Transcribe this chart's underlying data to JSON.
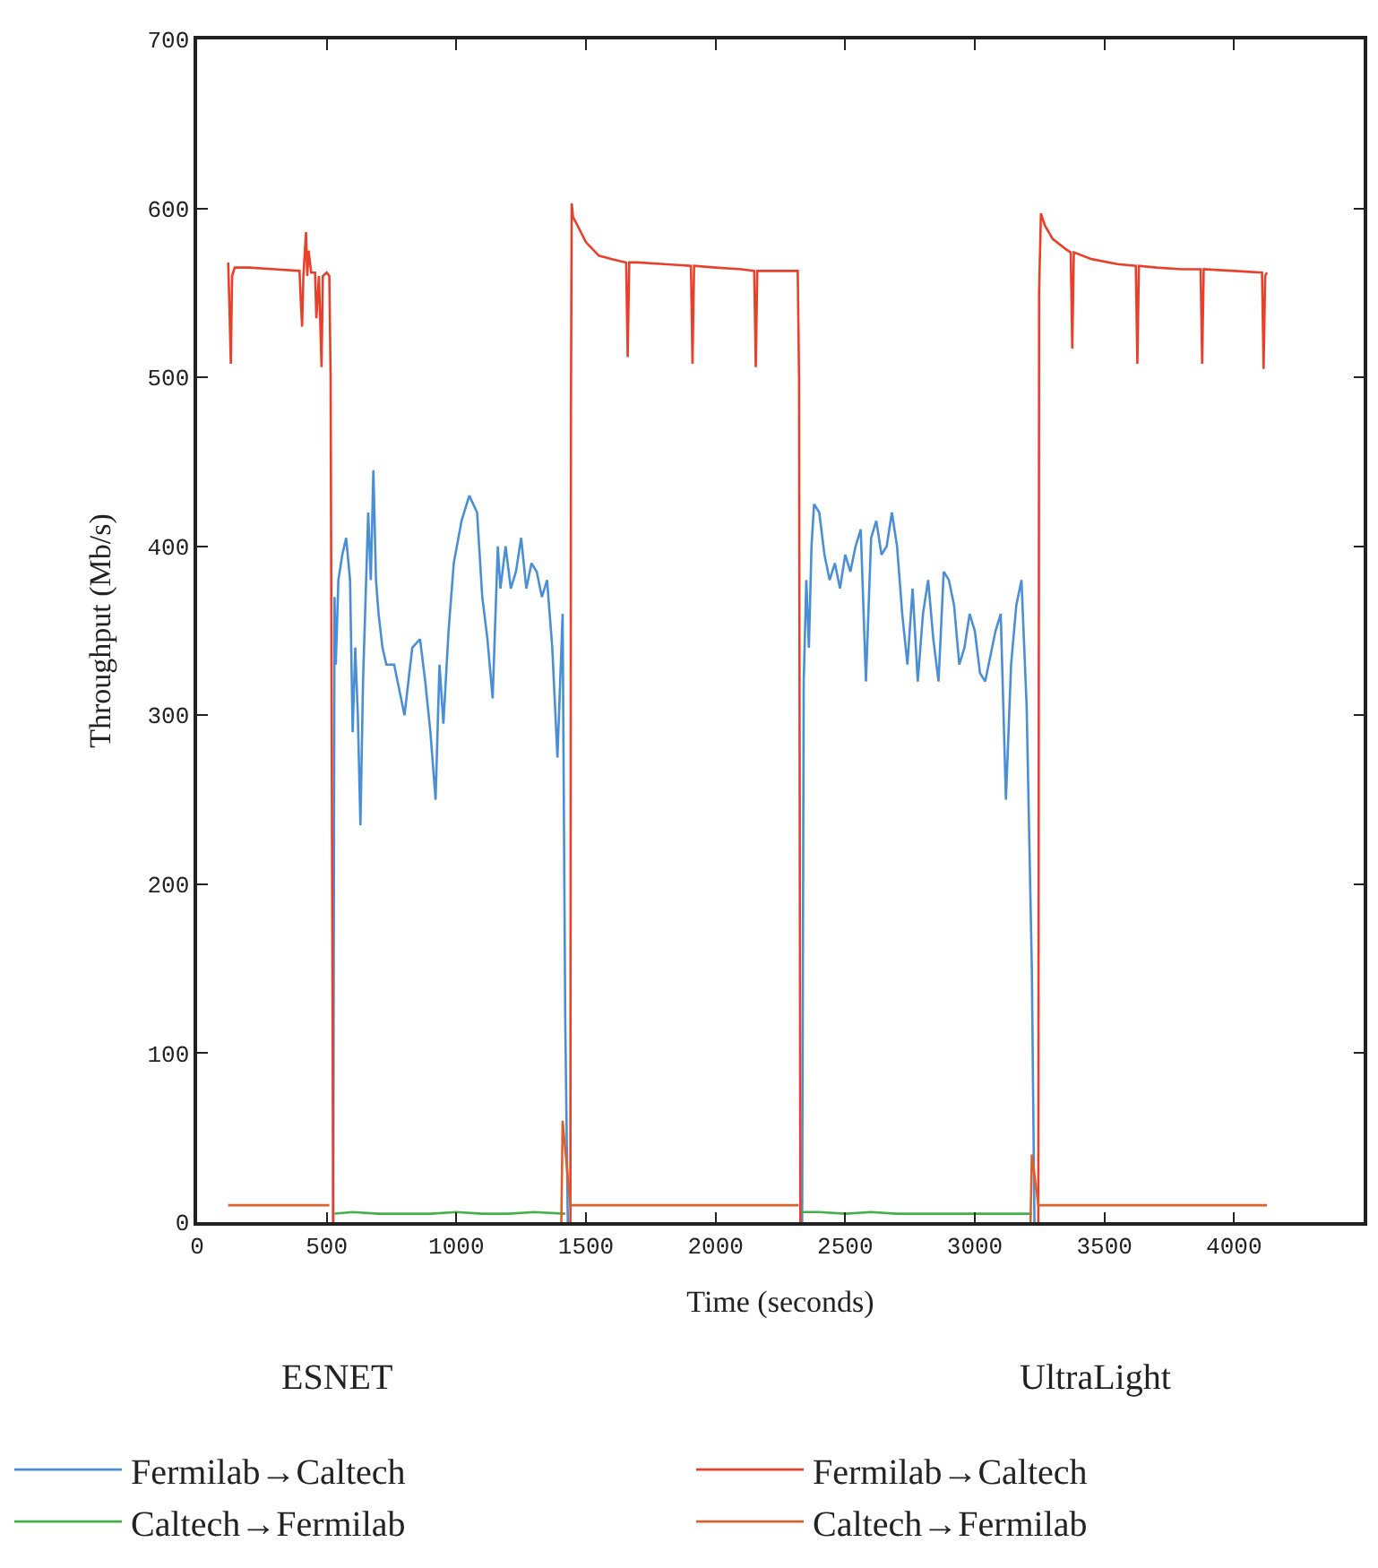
{
  "chart_data": {
    "type": "line",
    "xlabel": "Time (seconds)",
    "ylabel": "Throughput (Mb/s)",
    "xlim": [
      0,
      4500
    ],
    "xticks": [
      0,
      500,
      1000,
      1500,
      2000,
      2500,
      3000,
      3500,
      4000
    ],
    "ylim": [
      0,
      700
    ],
    "yticks": [
      0,
      100,
      200,
      300,
      400,
      500,
      600,
      700
    ],
    "legend": "bottom",
    "marker": "none",
    "line_style": "solid",
    "annotations": [
      "ESNET",
      "UltraLight"
    ],
    "series": [
      {
        "name": "Fermilab→Caltech",
        "color": "#4a8fd6",
        "x": [
          525,
          530,
          535,
          545,
          560,
          575,
          590,
          600,
          610,
          620,
          630,
          640,
          660,
          670,
          680,
          690,
          700,
          715,
          730,
          760,
          800,
          830,
          860,
          880,
          900,
          920,
          935,
          950,
          970,
          990,
          1020,
          1050,
          1080,
          1100,
          1120,
          1140,
          1160,
          1170,
          1190,
          1210,
          1230,
          1250,
          1270,
          1290,
          1310,
          1330,
          1350,
          1370,
          1390,
          1410,
          1420,
          1430,
          1431,
          2334,
          2340,
          2350,
          2360,
          2370,
          2380,
          2400,
          2420,
          2440,
          2460,
          2480,
          2500,
          2520,
          2540,
          2560,
          2580,
          2600,
          2620,
          2640,
          2660,
          2680,
          2700,
          2720,
          2740,
          2760,
          2780,
          2800,
          2820,
          2840,
          2860,
          2880,
          2900,
          2920,
          2940,
          2960,
          2980,
          3000,
          3020,
          3040,
          3060,
          3080,
          3100,
          3120,
          3140,
          3160,
          3180,
          3200,
          3220,
          3230
        ],
        "values": [
          0,
          370,
          330,
          380,
          395,
          405,
          380,
          290,
          340,
          300,
          235,
          320,
          420,
          380,
          445,
          380,
          360,
          340,
          330,
          330,
          300,
          340,
          345,
          320,
          290,
          250,
          330,
          295,
          350,
          390,
          415,
          430,
          420,
          370,
          345,
          310,
          400,
          375,
          400,
          375,
          385,
          405,
          375,
          390,
          385,
          370,
          380,
          340,
          275,
          360,
          120,
          0,
          null,
          0,
          320,
          380,
          340,
          400,
          425,
          420,
          395,
          380,
          390,
          375,
          395,
          385,
          400,
          410,
          320,
          405,
          415,
          395,
          400,
          420,
          400,
          360,
          330,
          375,
          320,
          360,
          380,
          345,
          320,
          385,
          380,
          365,
          330,
          340,
          360,
          350,
          325,
          320,
          335,
          350,
          360,
          250,
          330,
          365,
          380,
          305,
          150,
          0
        ]
      },
      {
        "name": "Fermilab→Caltech",
        "color": "#e8402a",
        "x": [
          120,
          125,
          130,
          135,
          145,
          200,
          300,
          395,
          400,
          405,
          410,
          420,
          425,
          430,
          440,
          455,
          460,
          470,
          480,
          485,
          500,
          510,
          515,
          525,
          526,
          1440,
          1442,
          1445,
          1450,
          1500,
          1550,
          1600,
          1655,
          1661,
          1667,
          1700,
          1800,
          1905,
          1911,
          1917,
          2000,
          2100,
          2149,
          2155,
          2161,
          2200,
          2317,
          2322,
          2327,
          2328,
          3245,
          3248,
          3255,
          3270,
          3300,
          3350,
          3370,
          3376,
          3382,
          3450,
          3550,
          3621,
          3627,
          3633,
          3700,
          3800,
          3871,
          3877,
          3883,
          4000,
          4108,
          4114,
          4120,
          4127
        ],
        "values": [
          568,
          540,
          508,
          560,
          565,
          565,
          564,
          563,
          545,
          530,
          560,
          586,
          560,
          575,
          562,
          562,
          535,
          560,
          506,
          560,
          562,
          560,
          500,
          0,
          null,
          0,
          480,
          603,
          595,
          580,
          572,
          570,
          568,
          512,
          568,
          568,
          567,
          566,
          508,
          566,
          565,
          564,
          563,
          506,
          563,
          563,
          563,
          500,
          0,
          null,
          0,
          550,
          597,
          590,
          582,
          576,
          574,
          517,
          574,
          570,
          567,
          566,
          508,
          566,
          565,
          564,
          564,
          508,
          564,
          563,
          562,
          505,
          560,
          562
        ]
      },
      {
        "name": "Caltech→Fermilab",
        "color": "#44b04a",
        "x": [
          530,
          600,
          700,
          800,
          900,
          1000,
          1100,
          1200,
          1300,
          1420,
          1421,
          2330,
          2400,
          2500,
          2600,
          2700,
          2800,
          2900,
          3000,
          3100,
          3220
        ],
        "values": [
          5,
          6,
          5,
          5,
          5,
          6,
          5,
          5,
          6,
          5,
          null,
          6,
          6,
          5,
          6,
          5,
          5,
          5,
          5,
          5,
          5
        ]
      },
      {
        "name": "Caltech→Fermilab",
        "color": "#d9622b",
        "x": [
          120,
          200,
          300,
          400,
          510,
          511,
          1405,
          1410,
          1440,
          1600,
          1800,
          2000,
          2200,
          2320,
          2321,
          3215,
          3220,
          3245,
          3400,
          3600,
          3800,
          4000,
          4127
        ],
        "values": [
          10,
          10,
          10,
          10,
          10,
          null,
          0,
          60,
          10,
          10,
          10,
          10,
          10,
          10,
          null,
          0,
          40,
          10,
          10,
          10,
          10,
          10,
          10
        ]
      }
    ]
  }
}
